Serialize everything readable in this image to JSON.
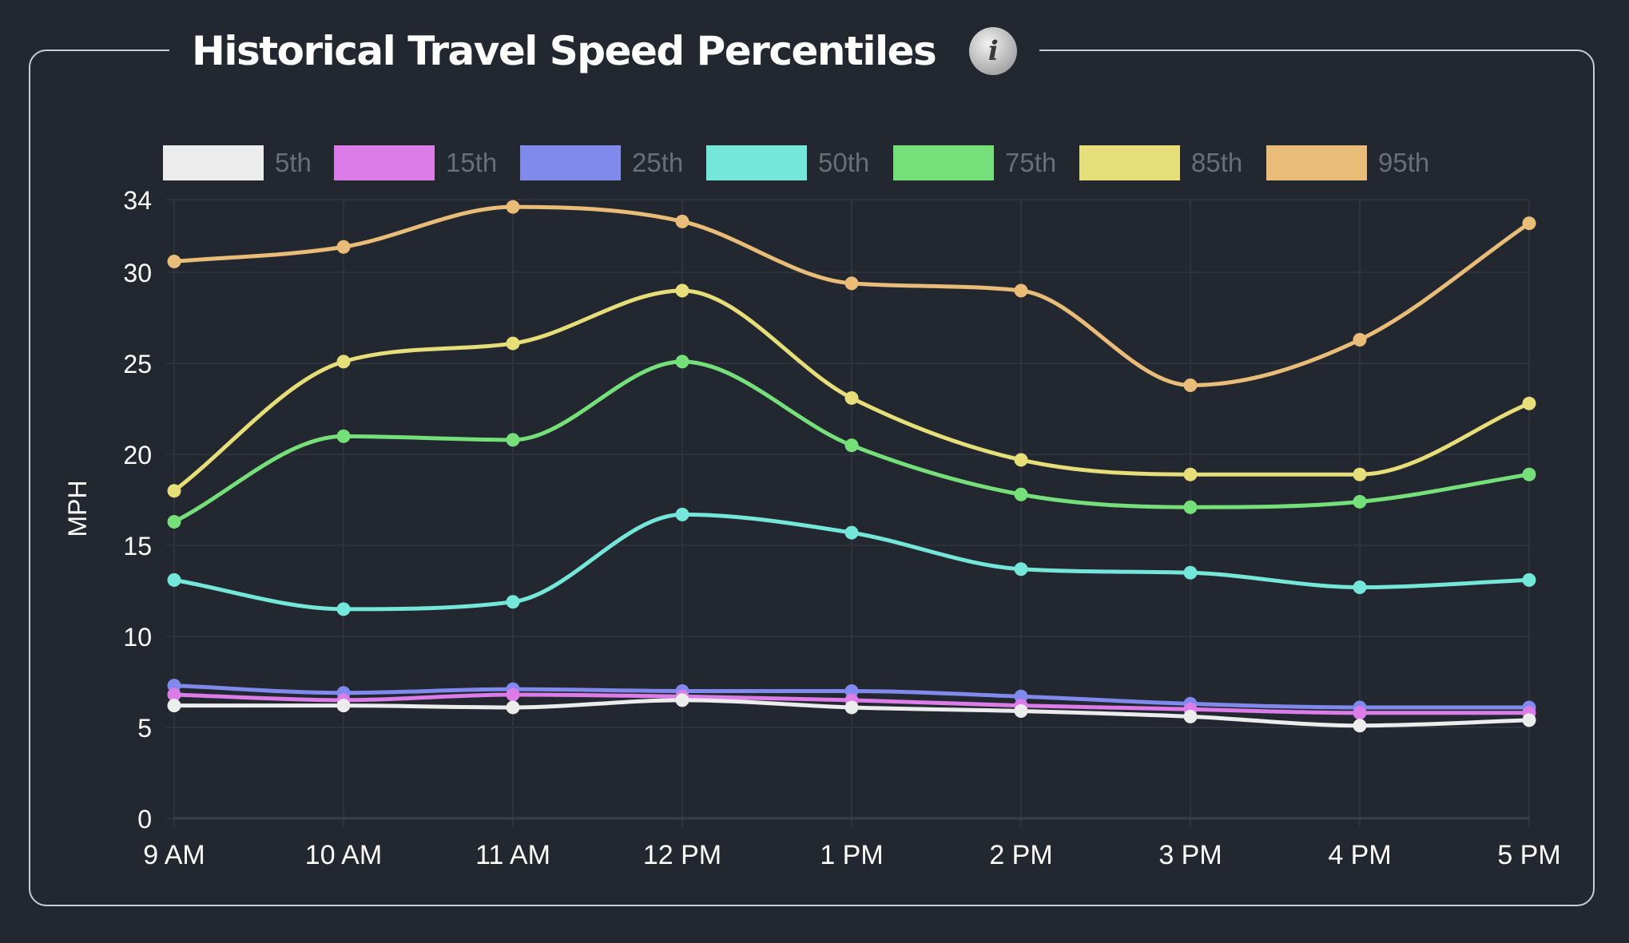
{
  "title": "Historical Travel Speed Percentiles",
  "info_icon": "info-icon",
  "chart_data": {
    "type": "line",
    "title": "Historical Travel Speed Percentiles",
    "xlabel": "",
    "ylabel": "MPH",
    "ylim": [
      0,
      34
    ],
    "yticks": [
      0,
      5,
      10,
      15,
      20,
      25,
      30,
      34
    ],
    "grid": true,
    "legend_position": "top",
    "categories": [
      "9 AM",
      "10 AM",
      "11 AM",
      "12 PM",
      "1 PM",
      "2 PM",
      "3 PM",
      "4 PM",
      "5 PM"
    ],
    "series": [
      {
        "name": "5th",
        "color": "#ececec",
        "values": [
          6.2,
          6.2,
          6.1,
          6.5,
          6.1,
          5.9,
          5.6,
          5.1,
          5.4
        ]
      },
      {
        "name": "15th",
        "color": "#dc7ce8",
        "values": [
          6.8,
          6.5,
          6.8,
          6.7,
          6.5,
          6.2,
          6.0,
          5.8,
          5.8
        ]
      },
      {
        "name": "25th",
        "color": "#7f8aec",
        "values": [
          7.3,
          6.9,
          7.1,
          7.0,
          7.0,
          6.7,
          6.3,
          6.1,
          6.1
        ]
      },
      {
        "name": "50th",
        "color": "#74e6da",
        "values": [
          13.1,
          11.5,
          11.9,
          16.7,
          15.7,
          13.7,
          13.5,
          12.7,
          13.1
        ]
      },
      {
        "name": "75th",
        "color": "#75e07a",
        "values": [
          16.3,
          21.0,
          20.8,
          25.1,
          20.5,
          17.8,
          17.1,
          17.4,
          18.9
        ]
      },
      {
        "name": "85th",
        "color": "#e6de78",
        "values": [
          18.0,
          25.1,
          26.1,
          29.0,
          23.1,
          19.7,
          18.9,
          18.9,
          22.8
        ]
      },
      {
        "name": "95th",
        "color": "#e9bc78",
        "values": [
          30.6,
          31.4,
          33.6,
          32.8,
          29.4,
          29.0,
          23.8,
          26.3,
          32.7
        ]
      }
    ]
  }
}
